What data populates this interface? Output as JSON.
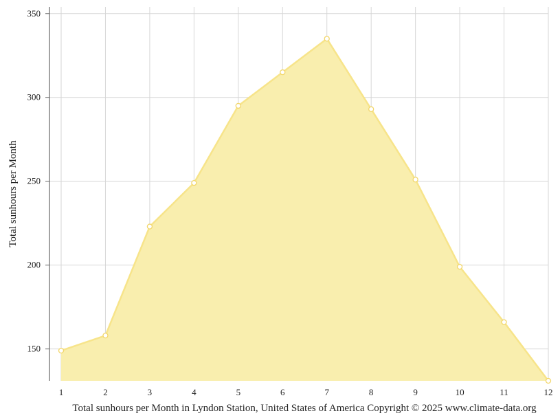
{
  "chart_data": {
    "type": "area",
    "x": [
      1,
      2,
      3,
      4,
      5,
      6,
      7,
      8,
      9,
      10,
      11,
      12
    ],
    "series": [
      {
        "values": [
          149,
          158,
          223,
          249,
          295,
          315,
          335,
          293,
          251,
          199,
          166,
          131
        ]
      }
    ],
    "ylabel": "Total sunhours per Month",
    "xlabel": "",
    "caption": "Total sunhours per Month in Lyndon Station, United States of America Copyright © 2025 www.climate-data.org",
    "xlim": [
      1,
      12
    ],
    "ylim": [
      131,
      354
    ],
    "yticks": [
      150,
      200,
      250,
      300,
      350
    ],
    "grid": true,
    "legend": "none",
    "colors": {
      "fill": "#f9eeae",
      "line": "#f7e48a",
      "marker_fill": "#ffffff",
      "marker_stroke": "#f2d66a",
      "grid": "#d6d6d6",
      "axis": "#666666"
    }
  }
}
